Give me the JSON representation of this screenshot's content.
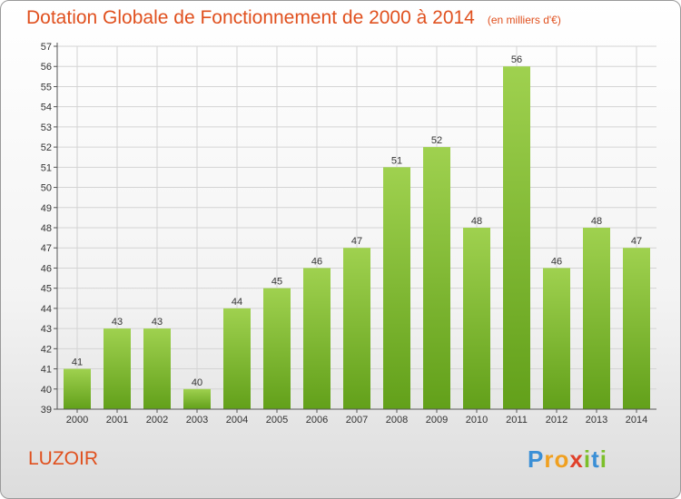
{
  "title": "Dotation Globale de Fonctionnement de 2000 à 2014",
  "subtitle": "(en milliers d'€)",
  "commune": "LUZOIR",
  "brand": {
    "letters": [
      "P",
      "r",
      "o",
      "x",
      "i",
      "t",
      "i"
    ],
    "colors": [
      "#3a8fd6",
      "#f0a020",
      "#f0a020",
      "#e0402a",
      "#7cbf2a",
      "#3a8fd6",
      "#7cbf2a"
    ]
  },
  "colors": {
    "bar_light": "#9fd14f",
    "bar_dark": "#62a01a",
    "title": "#e0501e",
    "grid": "#d4d4d4"
  },
  "chart_data": {
    "type": "bar",
    "categories": [
      "2000",
      "2001",
      "2002",
      "2003",
      "2004",
      "2005",
      "2006",
      "2007",
      "2008",
      "2009",
      "2010",
      "2011",
      "2012",
      "2013",
      "2014"
    ],
    "values": [
      41,
      43,
      43,
      40,
      44,
      45,
      46,
      47,
      51,
      52,
      48,
      56,
      46,
      48,
      47
    ],
    "ylim": [
      39,
      57
    ],
    "yticks": [
      39,
      40,
      41,
      42,
      43,
      44,
      45,
      46,
      47,
      48,
      49,
      50,
      51,
      52,
      53,
      54,
      55,
      56,
      57
    ],
    "grid": true,
    "legend": "none"
  }
}
